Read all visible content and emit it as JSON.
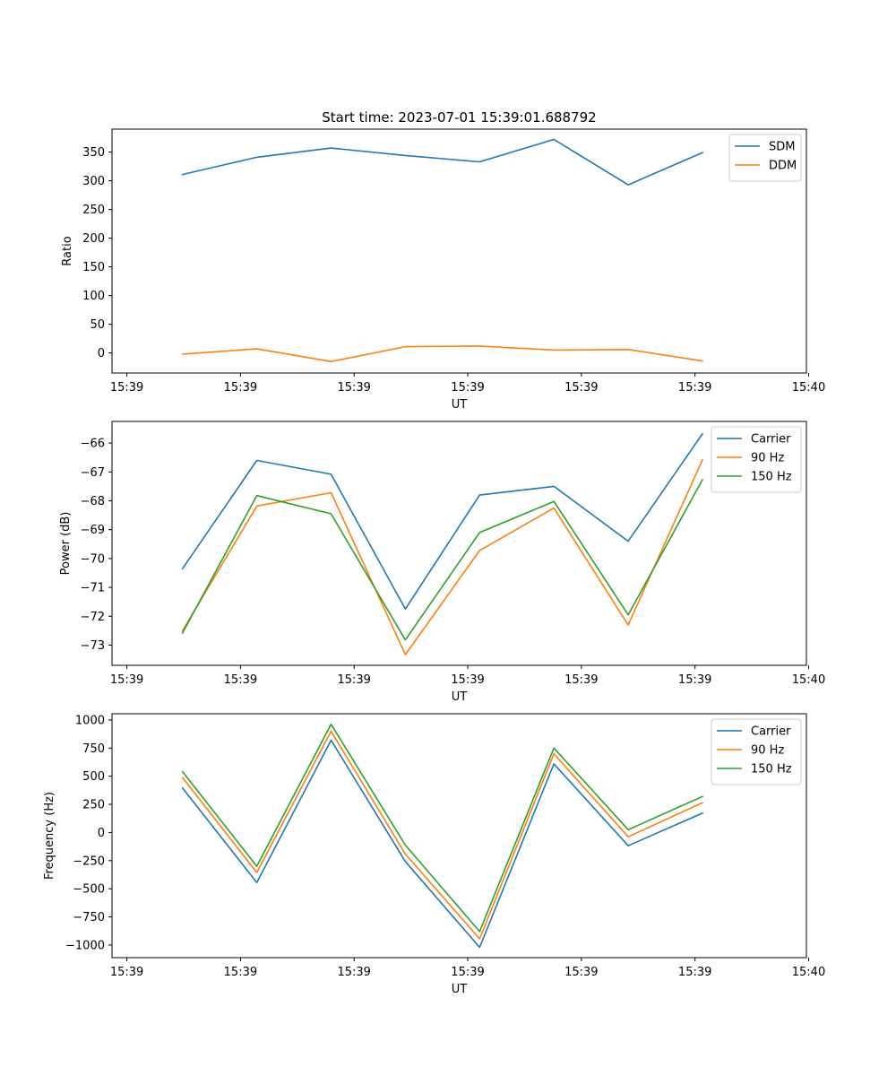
{
  "chart_data": [
    {
      "type": "line",
      "title": "Start time: 2023-07-01 15:39:01.688792",
      "xlabel": "UT",
      "ylabel": "Ratio",
      "x": [
        0,
        1,
        2,
        3,
        4,
        5,
        6,
        7
      ],
      "x_tick_positions": [
        -0.75,
        0.78,
        2.31,
        3.84,
        5.37,
        6.9,
        8.43
      ],
      "x_tick_labels": [
        "15:39",
        "15:39",
        "15:39",
        "15:39",
        "15:39",
        "15:39",
        "15:40"
      ],
      "xlim": [
        -0.95,
        8.4
      ],
      "ylim": [
        -35,
        390
      ],
      "y_ticks": [
        0,
        50,
        100,
        150,
        200,
        250,
        300,
        350
      ],
      "y_tick_labels": [
        "0",
        "50",
        "100",
        "150",
        "200",
        "250",
        "300",
        "350"
      ],
      "legend_position": "top-right",
      "series": [
        {
          "name": "SDM",
          "color": "#1f77b4",
          "values": [
            311,
            341,
            357,
            344,
            333,
            372,
            293,
            349
          ]
        },
        {
          "name": "DDM",
          "color": "#ff7f0e",
          "values": [
            -2,
            7,
            -15,
            11,
            12,
            5,
            6,
            -14
          ]
        }
      ]
    },
    {
      "type": "line",
      "title": "",
      "xlabel": "UT",
      "ylabel": "Power (dB)",
      "x": [
        0,
        1,
        2,
        3,
        4,
        5,
        6,
        7
      ],
      "x_tick_positions": [
        -0.75,
        0.78,
        2.31,
        3.84,
        5.37,
        6.9,
        8.43
      ],
      "x_tick_labels": [
        "15:39",
        "15:39",
        "15:39",
        "15:39",
        "15:39",
        "15:39",
        "15:40"
      ],
      "xlim": [
        -0.95,
        8.4
      ],
      "ylim": [
        -73.7,
        -65.25
      ],
      "y_ticks": [
        -73,
        -72,
        -71,
        -70,
        -69,
        -68,
        -67,
        -66
      ],
      "y_tick_labels": [
        "−73",
        "−72",
        "−71",
        "−70",
        "−69",
        "−68",
        "−67",
        "−66"
      ],
      "legend_position": "top-right",
      "series": [
        {
          "name": "Carrier",
          "color": "#1f77b4",
          "values": [
            -70.35,
            -66.6,
            -67.08,
            -71.75,
            -67.8,
            -67.5,
            -69.4,
            -65.68
          ]
        },
        {
          "name": "90 Hz",
          "color": "#ff7f0e",
          "values": [
            -72.5,
            -68.18,
            -67.72,
            -73.33,
            -69.72,
            -68.25,
            -72.3,
            -66.58
          ]
        },
        {
          "name": "150 Hz",
          "color": "#2ca02c",
          "values": [
            -72.58,
            -67.82,
            -68.45,
            -72.82,
            -69.1,
            -68.02,
            -71.95,
            -67.27
          ]
        }
      ]
    },
    {
      "type": "line",
      "title": "",
      "xlabel": "UT",
      "ylabel": "Frequency (Hz)",
      "x": [
        0,
        1,
        2,
        3,
        4,
        5,
        6,
        7
      ],
      "x_tick_positions": [
        -0.75,
        0.78,
        2.31,
        3.84,
        5.37,
        6.9,
        8.43
      ],
      "x_tick_labels": [
        "15:39",
        "15:39",
        "15:39",
        "15:39",
        "15:39",
        "15:39",
        "15:40"
      ],
      "xlim": [
        -0.95,
        8.4
      ],
      "ylim": [
        -1112,
        1055
      ],
      "y_ticks": [
        -1000,
        -750,
        -500,
        -250,
        0,
        250,
        500,
        750,
        1000
      ],
      "y_tick_labels": [
        "−1000",
        "−750",
        "−500",
        "−250",
        "0",
        "250",
        "500",
        "750",
        "1000"
      ],
      "legend_position": "top-right",
      "series": [
        {
          "name": "Carrier",
          "color": "#1f77b4",
          "values": [
            395,
            -445,
            820,
            -258,
            -1020,
            610,
            -118,
            172
          ]
        },
        {
          "name": "90 Hz",
          "color": "#ff7f0e",
          "values": [
            488,
            -355,
            900,
            -192,
            -945,
            700,
            -38,
            265
          ]
        },
        {
          "name": "150 Hz",
          "color": "#2ca02c",
          "values": [
            540,
            -300,
            962,
            -112,
            -880,
            750,
            25,
            320
          ]
        }
      ]
    }
  ]
}
